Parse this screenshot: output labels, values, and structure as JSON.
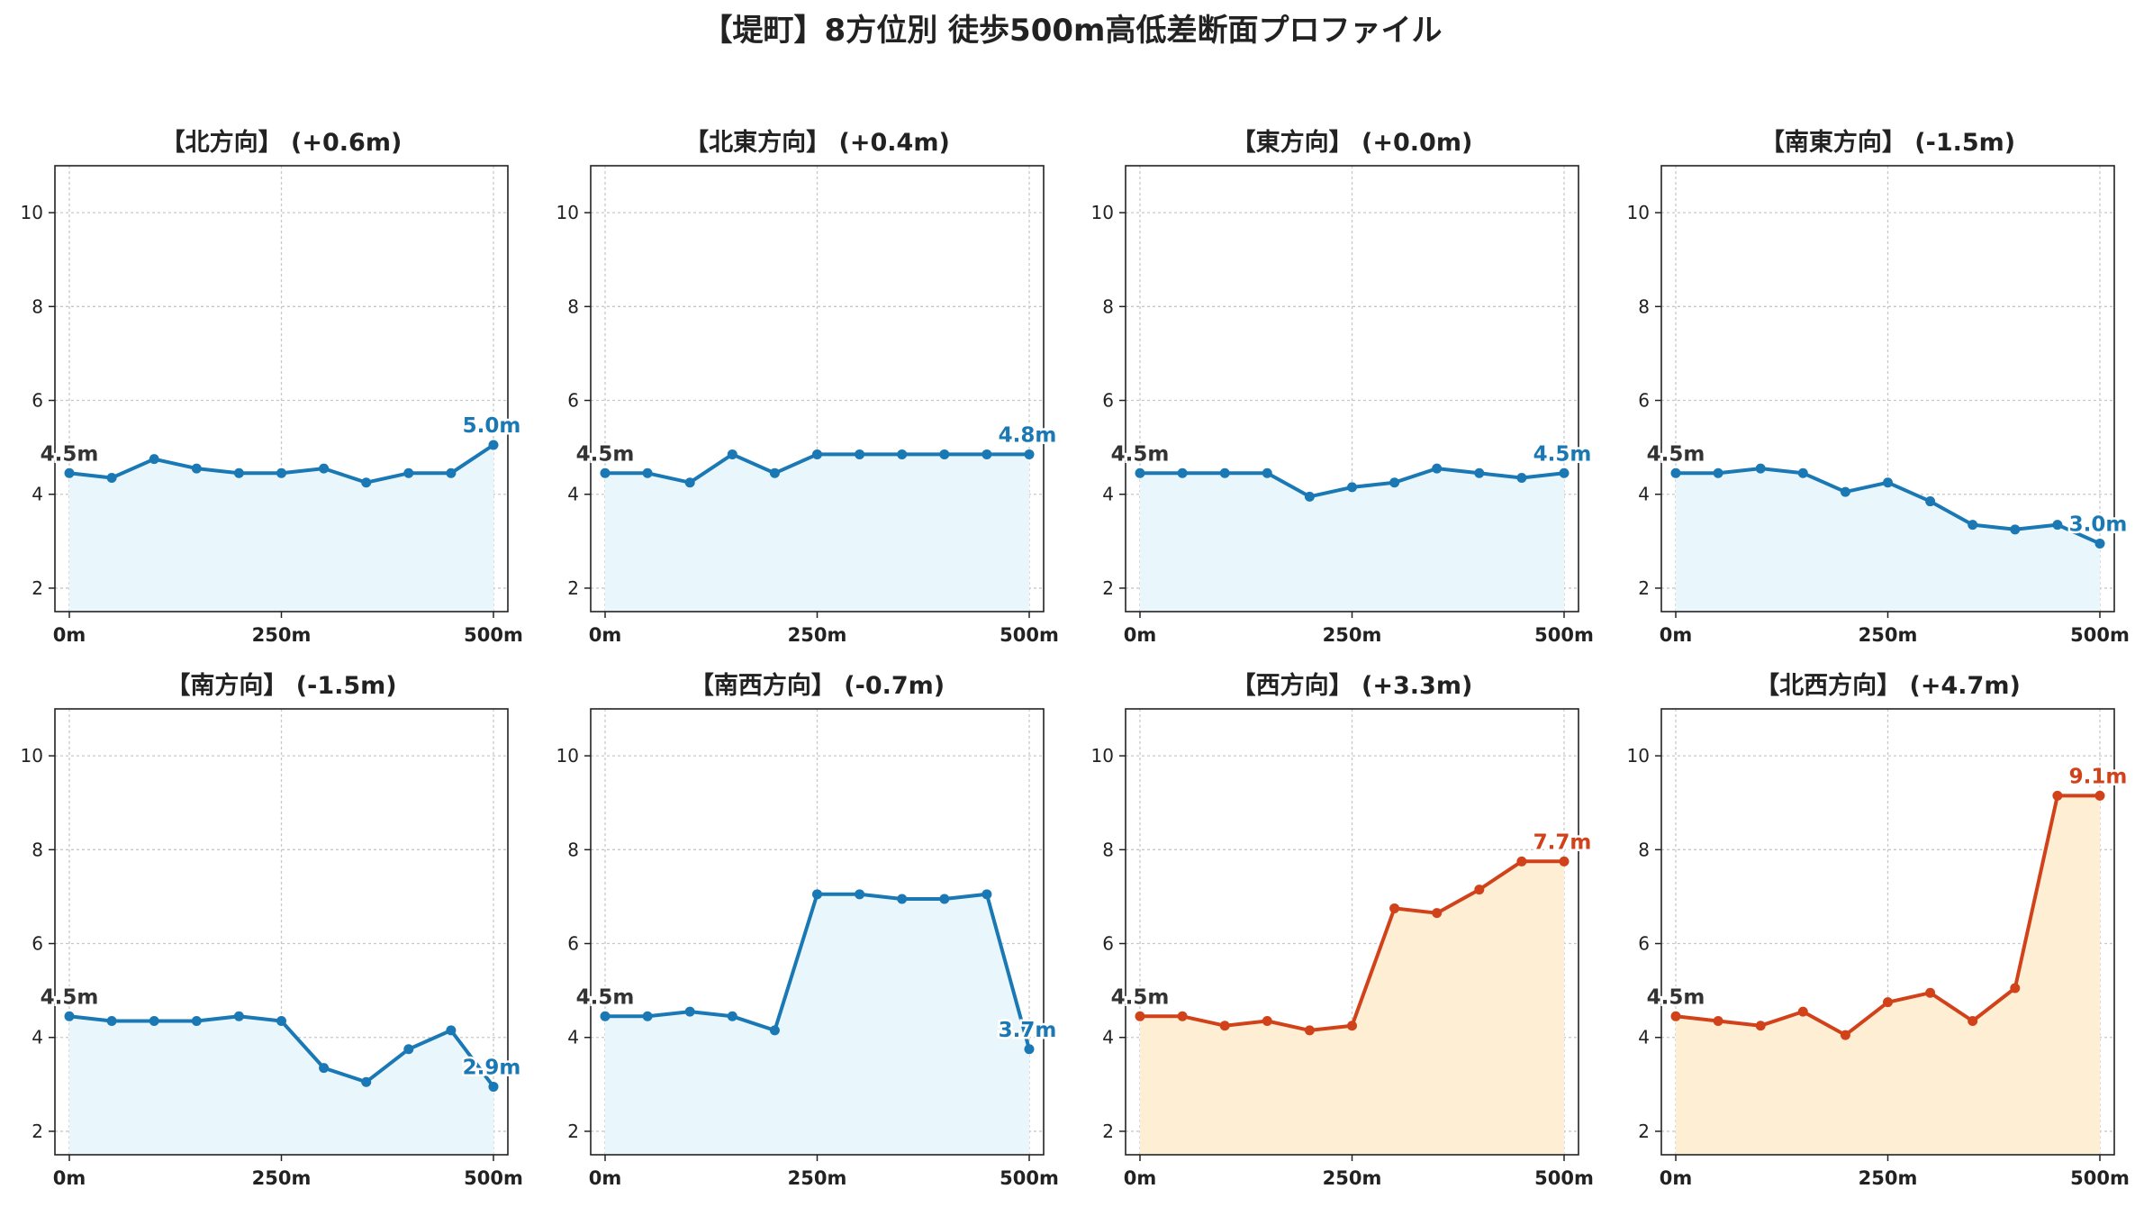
{
  "figure": {
    "title": "【堤町】8方位別 徒歩500m高低差断面プロファイル"
  },
  "chart_data": [
    {
      "type": "area",
      "title": "【北方向】 (+0.6m)",
      "x": [
        0,
        50,
        100,
        150,
        200,
        250,
        300,
        350,
        400,
        450,
        500
      ],
      "xticks": [
        "0m",
        "250m",
        "500m"
      ],
      "ylim": [
        1.5,
        11
      ],
      "yticks": [
        2,
        4,
        6,
        8,
        10
      ],
      "grid": true,
      "series": [
        {
          "values": [
            4.45,
            4.35,
            4.75,
            4.55,
            4.45,
            4.45,
            4.55,
            4.25,
            4.45,
            4.45,
            5.05
          ]
        }
      ],
      "start_label": "4.5m",
      "end_label": "5.0m",
      "color": "#1a78b4",
      "fill": "#e9f6fb"
    },
    {
      "type": "area",
      "title": "【北東方向】 (+0.4m)",
      "x": [
        0,
        50,
        100,
        150,
        200,
        250,
        300,
        350,
        400,
        450,
        500
      ],
      "xticks": [
        "0m",
        "250m",
        "500m"
      ],
      "ylim": [
        1.5,
        11
      ],
      "yticks": [
        2,
        4,
        6,
        8,
        10
      ],
      "grid": true,
      "series": [
        {
          "values": [
            4.45,
            4.45,
            4.25,
            4.85,
            4.45,
            4.85,
            4.85,
            4.85,
            4.85,
            4.85,
            4.85
          ]
        }
      ],
      "start_label": "4.5m",
      "end_label": "4.8m",
      "color": "#1a78b4",
      "fill": "#e9f6fb"
    },
    {
      "type": "area",
      "title": "【東方向】 (+0.0m)",
      "x": [
        0,
        50,
        100,
        150,
        200,
        250,
        300,
        350,
        400,
        450,
        500
      ],
      "xticks": [
        "0m",
        "250m",
        "500m"
      ],
      "ylim": [
        1.5,
        11
      ],
      "yticks": [
        2,
        4,
        6,
        8,
        10
      ],
      "grid": true,
      "series": [
        {
          "values": [
            4.45,
            4.45,
            4.45,
            4.45,
            3.95,
            4.15,
            4.25,
            4.55,
            4.45,
            4.35,
            4.45
          ]
        }
      ],
      "start_label": "4.5m",
      "end_label": "4.5m",
      "color": "#1a78b4",
      "fill": "#e9f6fb"
    },
    {
      "type": "area",
      "title": "【南東方向】 (-1.5m)",
      "x": [
        0,
        50,
        100,
        150,
        200,
        250,
        300,
        350,
        400,
        450,
        500
      ],
      "xticks": [
        "0m",
        "250m",
        "500m"
      ],
      "ylim": [
        1.5,
        11
      ],
      "yticks": [
        2,
        4,
        6,
        8,
        10
      ],
      "grid": true,
      "series": [
        {
          "values": [
            4.45,
            4.45,
            4.55,
            4.45,
            4.05,
            4.25,
            3.85,
            3.35,
            3.25,
            3.35,
            2.95
          ]
        }
      ],
      "start_label": "4.5m",
      "end_label": "3.0m",
      "color": "#1a78b4",
      "fill": "#e9f6fb"
    },
    {
      "type": "area",
      "title": "【南方向】 (-1.5m)",
      "x": [
        0,
        50,
        100,
        150,
        200,
        250,
        300,
        350,
        400,
        450,
        500
      ],
      "xticks": [
        "0m",
        "250m",
        "500m"
      ],
      "ylim": [
        1.5,
        11
      ],
      "yticks": [
        2,
        4,
        6,
        8,
        10
      ],
      "grid": true,
      "series": [
        {
          "values": [
            4.45,
            4.35,
            4.35,
            4.35,
            4.45,
            4.35,
            3.35,
            3.05,
            3.75,
            4.15,
            2.95
          ]
        }
      ],
      "start_label": "4.5m",
      "end_label": "2.9m",
      "color": "#1a78b4",
      "fill": "#e9f6fb"
    },
    {
      "type": "area",
      "title": "【南西方向】 (-0.7m)",
      "x": [
        0,
        50,
        100,
        150,
        200,
        250,
        300,
        350,
        400,
        450,
        500
      ],
      "xticks": [
        "0m",
        "250m",
        "500m"
      ],
      "ylim": [
        1.5,
        11
      ],
      "yticks": [
        2,
        4,
        6,
        8,
        10
      ],
      "grid": true,
      "series": [
        {
          "values": [
            4.45,
            4.45,
            4.55,
            4.45,
            4.15,
            7.05,
            7.05,
            6.95,
            6.95,
            7.05,
            3.75
          ]
        }
      ],
      "start_label": "4.5m",
      "end_label": "3.7m",
      "color": "#1a78b4",
      "fill": "#e9f6fb"
    },
    {
      "type": "area",
      "title": "【西方向】 (+3.3m)",
      "x": [
        0,
        50,
        100,
        150,
        200,
        250,
        300,
        350,
        400,
        450,
        500
      ],
      "xticks": [
        "0m",
        "250m",
        "500m"
      ],
      "ylim": [
        1.5,
        11
      ],
      "yticks": [
        2,
        4,
        6,
        8,
        10
      ],
      "grid": true,
      "series": [
        {
          "values": [
            4.45,
            4.45,
            4.25,
            4.35,
            4.15,
            4.25,
            6.75,
            6.65,
            7.15,
            7.75,
            7.75
          ]
        }
      ],
      "start_label": "4.5m",
      "end_label": "7.7m",
      "color": "#d2421a",
      "fill": "#fdeed4"
    },
    {
      "type": "area",
      "title": "【北西方向】 (+4.7m)",
      "x": [
        0,
        50,
        100,
        150,
        200,
        250,
        300,
        350,
        400,
        450,
        500
      ],
      "xticks": [
        "0m",
        "250m",
        "500m"
      ],
      "ylim": [
        1.5,
        11
      ],
      "yticks": [
        2,
        4,
        6,
        8,
        10
      ],
      "grid": true,
      "series": [
        {
          "values": [
            4.45,
            4.35,
            4.25,
            4.55,
            4.05,
            4.75,
            4.95,
            4.35,
            5.05,
            9.15,
            9.15
          ]
        }
      ],
      "start_label": "4.5m",
      "end_label": "9.1m",
      "color": "#d2421a",
      "fill": "#fdeed4"
    }
  ]
}
